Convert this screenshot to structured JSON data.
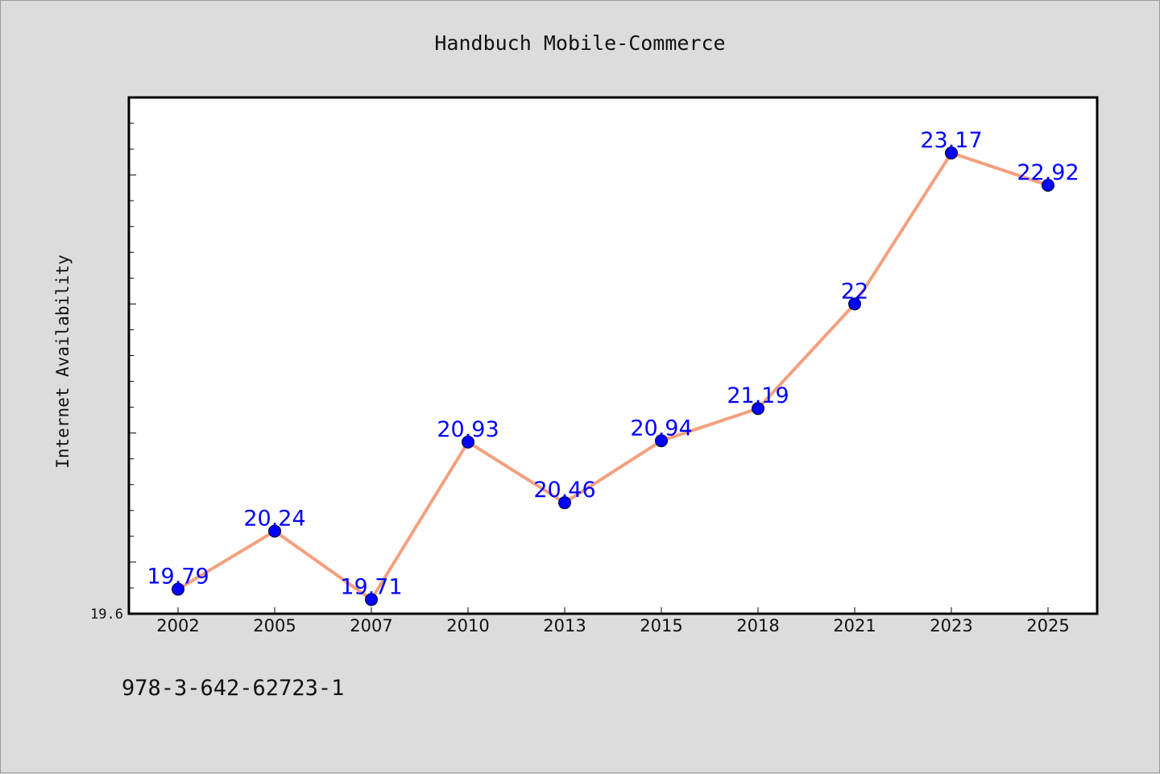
{
  "chart_data": {
    "type": "line",
    "title": "Handbuch Mobile-Commerce",
    "ylabel": "Internet Availability",
    "xlabel": "",
    "categories": [
      "2002",
      "2005",
      "2007",
      "2010",
      "2013",
      "2015",
      "2018",
      "2021",
      "2023",
      "2025"
    ],
    "series": [
      {
        "values": [
          19.79,
          20.24,
          19.71,
          20.93,
          20.46,
          20.94,
          21.19,
          22,
          23.17,
          22.92
        ],
        "data_labels": [
          "19.79",
          "20.24",
          "19.71",
          "20.93",
          "20.46",
          "20.94",
          "21.19",
          "22",
          "23.17",
          "22.92"
        ]
      }
    ],
    "y_tick_label": "19.6",
    "ylim": [
      19.6,
      23.6
    ],
    "grid": false,
    "line_color": "#f4a07e",
    "marker_color": "#0000ff",
    "label_color": "#0000ff"
  },
  "footer": {
    "isbn": "978-3-642-62723-1"
  }
}
